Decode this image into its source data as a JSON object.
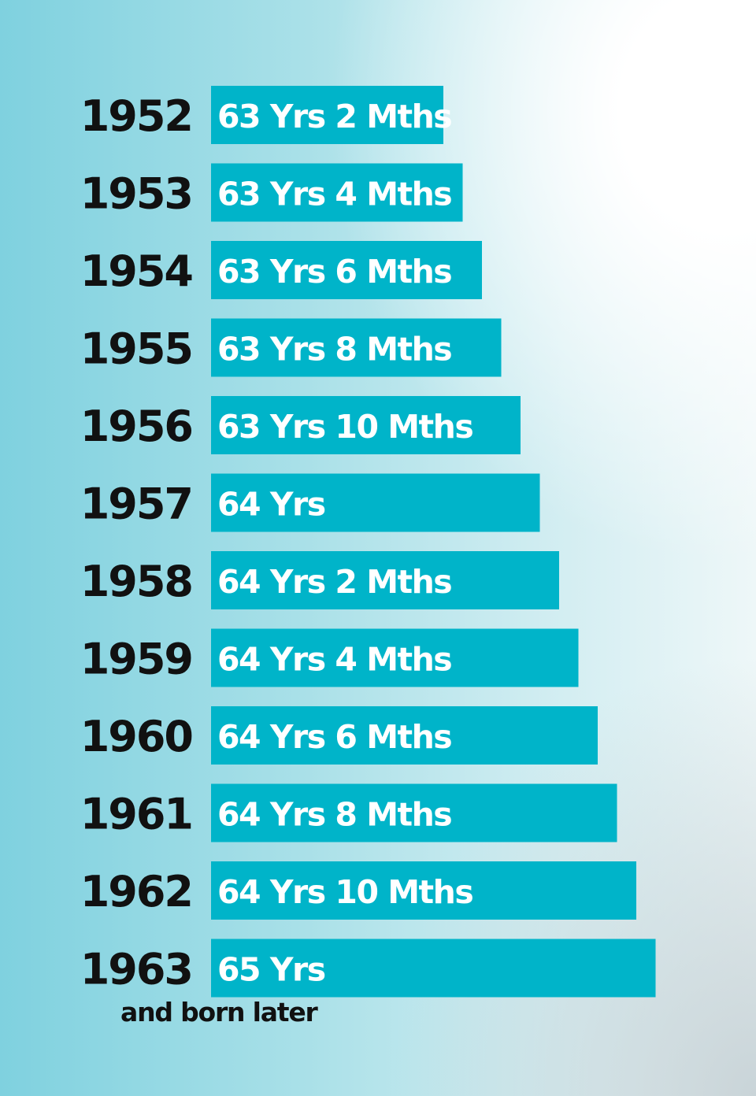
{
  "chart_data": {
    "type": "bar",
    "orientation": "horizontal",
    "categories": [
      "1952",
      "1953",
      "1954",
      "1955",
      "1956",
      "1957",
      "1958",
      "1959",
      "1960",
      "1961",
      "1962",
      "1963"
    ],
    "values_months": [
      758,
      760,
      762,
      764,
      766,
      768,
      770,
      772,
      774,
      776,
      778,
      780
    ],
    "bar_labels": [
      "63 Yrs 2 Mths",
      "63 Yrs 4 Mths",
      "63 Yrs 6 Mths",
      "63 Yrs 8 Mths",
      "63 Yrs 10 Mths",
      "64 Yrs",
      "64 Yrs 2 Mths",
      "64 Yrs 4 Mths",
      "64 Yrs 6 Mths",
      "64 Yrs 8 Mths",
      "64 Yrs 10 Mths",
      "65 Yrs"
    ],
    "annotation": "and born later",
    "bar_color": "#00b4c9",
    "label_color": "#ffffff",
    "category_color": "#111111",
    "grid": false,
    "legend": false
  }
}
